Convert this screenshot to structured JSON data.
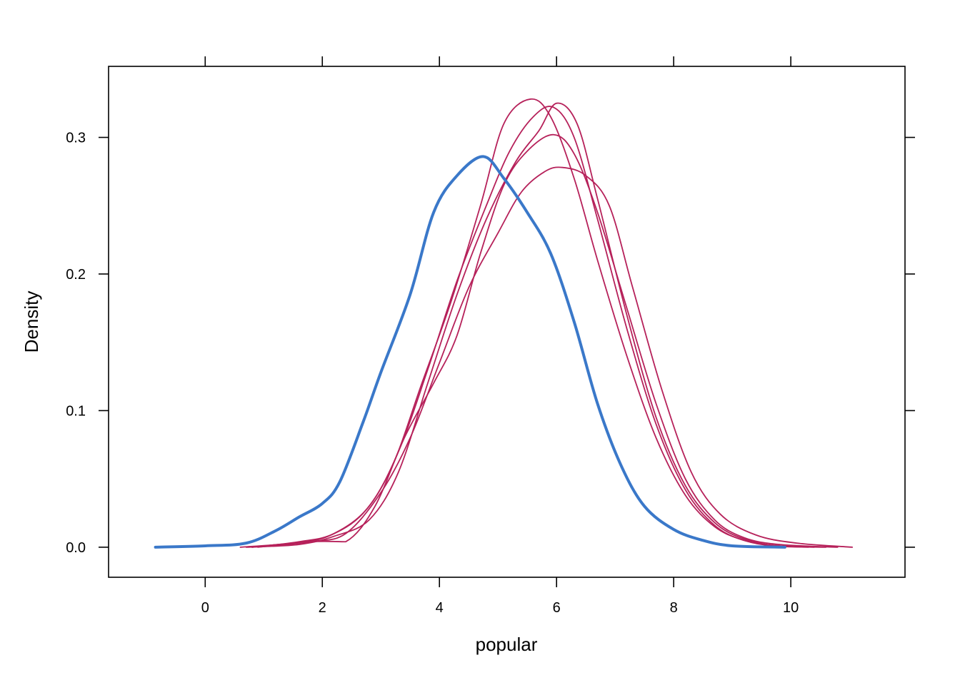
{
  "chart_data": {
    "type": "line",
    "title": "",
    "xlabel": "popular",
    "ylabel": "Density",
    "xlim": [
      -1.65,
      11.95
    ],
    "ylim": [
      -0.022,
      0.352
    ],
    "xticks": [
      0,
      2,
      4,
      6,
      8,
      10
    ],
    "xtick_labels": [
      "0",
      "2",
      "4",
      "6",
      "8",
      "10"
    ],
    "yticks": [
      0.0,
      0.1,
      0.2,
      0.3
    ],
    "ytick_labels": [
      "0.0",
      "0.1",
      "0.2",
      "0.3"
    ],
    "grid": false,
    "legend": "none",
    "colors": {
      "observed": "#3a78c9",
      "imputed": "#b6215a",
      "frame": "#000000"
    },
    "series": [
      {
        "role": "observed",
        "color": "#3a78c9",
        "x": [
          -0.85,
          0,
          0.7,
          1.2,
          1.6,
          2.0,
          2.3,
          2.7,
          3.0,
          3.5,
          3.9,
          4.3,
          4.75,
          5.1,
          5.5,
          5.9,
          6.3,
          6.7,
          7.1,
          7.5,
          8.0,
          8.5,
          9.0,
          9.9
        ],
        "y": [
          0.0,
          0.001,
          0.003,
          0.012,
          0.022,
          0.032,
          0.048,
          0.092,
          0.128,
          0.185,
          0.245,
          0.272,
          0.286,
          0.27,
          0.245,
          0.215,
          0.165,
          0.105,
          0.06,
          0.03,
          0.013,
          0.005,
          0.001,
          0.0
        ]
      },
      {
        "role": "imputed",
        "color": "#b6215a",
        "x": [
          0.6,
          1.5,
          2.1,
          2.7,
          3.2,
          3.7,
          4.2,
          4.7,
          5.1,
          5.55,
          5.9,
          6.3,
          6.7,
          7.2,
          7.7,
          8.2,
          8.7,
          9.2,
          9.7,
          10.3
        ],
        "y": [
          0.0,
          0.003,
          0.008,
          0.025,
          0.06,
          0.12,
          0.18,
          0.25,
          0.31,
          0.328,
          0.315,
          0.27,
          0.21,
          0.14,
          0.08,
          0.038,
          0.015,
          0.005,
          0.001,
          0.0
        ]
      },
      {
        "role": "imputed",
        "color": "#b6215a",
        "x": [
          0.8,
          1.6,
          2.2,
          2.8,
          3.3,
          3.8,
          4.3,
          4.8,
          5.2,
          5.6,
          5.95,
          6.3,
          6.7,
          7.2,
          7.7,
          8.2,
          8.7,
          9.2,
          9.8,
          10.4
        ],
        "y": [
          0.0,
          0.004,
          0.01,
          0.03,
          0.07,
          0.13,
          0.195,
          0.25,
          0.29,
          0.315,
          0.322,
          0.3,
          0.24,
          0.16,
          0.09,
          0.042,
          0.016,
          0.005,
          0.001,
          0.0
        ]
      },
      {
        "role": "imputed",
        "color": "#b6215a",
        "x": [
          0.7,
          1.6,
          2.2,
          2.8,
          3.3,
          3.8,
          4.3,
          4.8,
          5.3,
          5.7,
          6.0,
          6.35,
          6.7,
          7.2,
          7.7,
          8.2,
          8.7,
          9.2,
          9.8,
          10.6
        ],
        "y": [
          0.0,
          0.002,
          0.008,
          0.02,
          0.055,
          0.12,
          0.185,
          0.24,
          0.282,
          0.305,
          0.325,
          0.31,
          0.255,
          0.17,
          0.095,
          0.045,
          0.018,
          0.006,
          0.001,
          0.0
        ]
      },
      {
        "role": "imputed",
        "color": "#b6215a",
        "x": [
          0.8,
          1.8,
          2.4,
          2.9,
          3.4,
          3.9,
          4.3,
          4.7,
          5.1,
          5.5,
          5.95,
          6.3,
          6.7,
          7.2,
          7.7,
          8.2,
          8.7,
          9.2,
          9.8,
          10.8
        ],
        "y": [
          0.0,
          0.004,
          0.004,
          0.03,
          0.08,
          0.12,
          0.155,
          0.215,
          0.265,
          0.29,
          0.302,
          0.288,
          0.245,
          0.175,
          0.105,
          0.05,
          0.02,
          0.007,
          0.002,
          0.0
        ]
      },
      {
        "role": "imputed",
        "color": "#b6215a",
        "x": [
          0.9,
          1.8,
          2.4,
          3.0,
          3.5,
          4.0,
          4.5,
          5.0,
          5.4,
          5.8,
          6.1,
          6.5,
          6.9,
          7.3,
          7.8,
          8.3,
          8.8,
          9.4,
          10.1,
          11.05
        ],
        "y": [
          0.0,
          0.004,
          0.01,
          0.04,
          0.08,
          0.135,
          0.19,
          0.23,
          0.26,
          0.275,
          0.278,
          0.272,
          0.25,
          0.19,
          0.115,
          0.055,
          0.024,
          0.009,
          0.003,
          0.0
        ]
      }
    ]
  }
}
